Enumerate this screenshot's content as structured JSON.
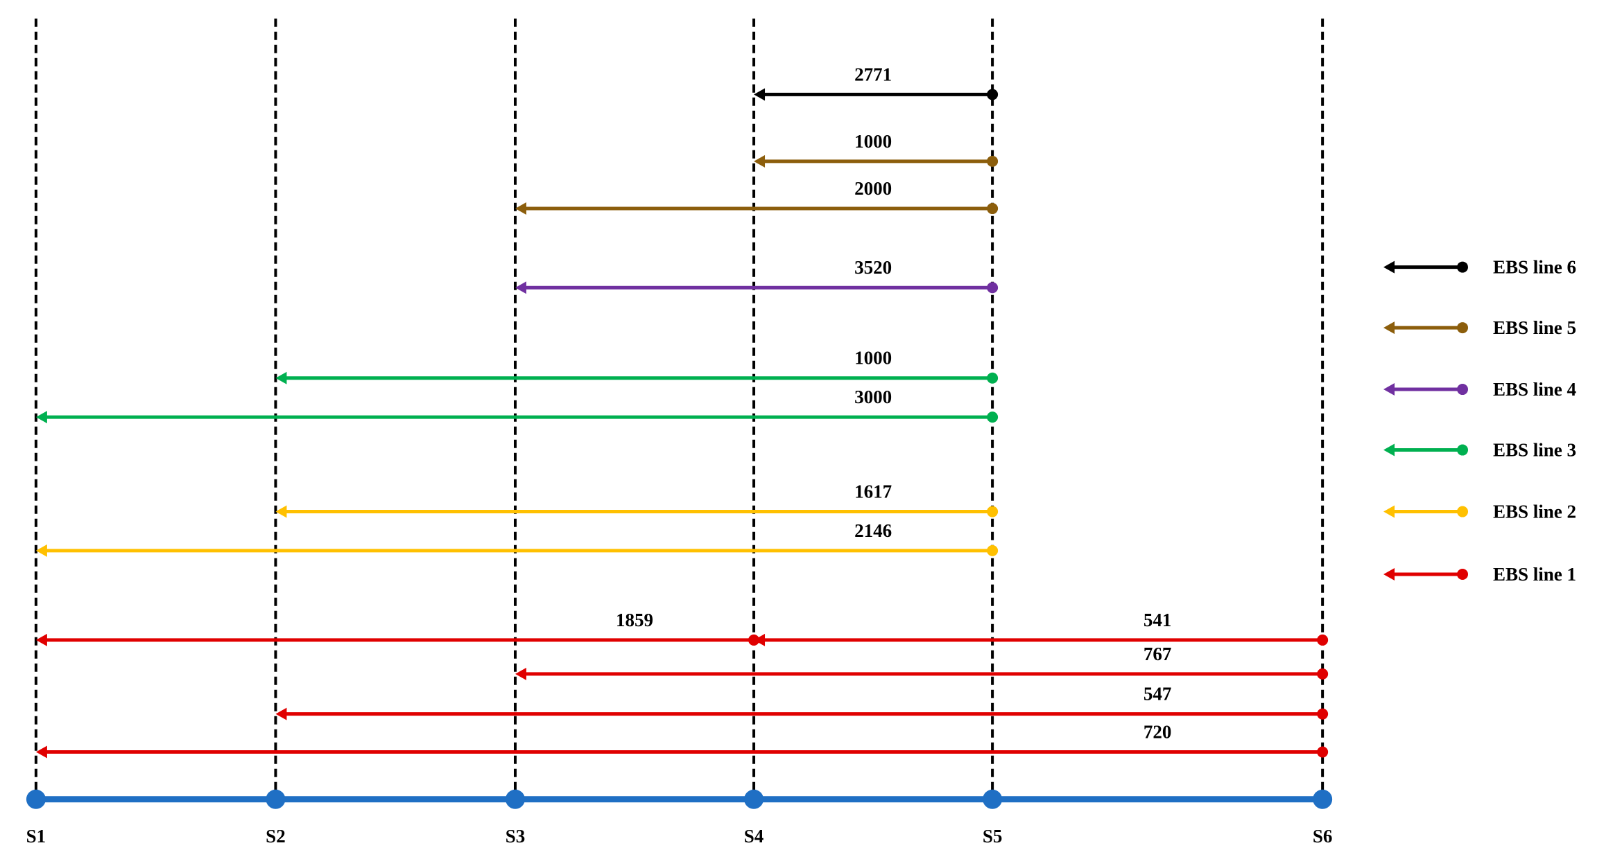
{
  "stations": [
    "S1",
    "S2",
    "S3",
    "S4",
    "S5",
    "S6"
  ],
  "legend": [
    {
      "name": "EBS line 6",
      "color": "#000000"
    },
    {
      "name": "EBS line 5",
      "color": "#8c5e0c"
    },
    {
      "name": "EBS line 4",
      "color": "#7030a0"
    },
    {
      "name": "EBS line 3",
      "color": "#00b050"
    },
    {
      "name": "EBS line 2",
      "color": "#ffc000"
    },
    {
      "name": "EBS line 1",
      "color": "#e00000"
    }
  ],
  "arrows": [
    {
      "line": "EBS line 6",
      "from": "S5",
      "to": "S4",
      "label": 2771
    },
    {
      "line": "EBS line 5",
      "from": "S5",
      "to": "S4",
      "label": 1000
    },
    {
      "line": "EBS line 5",
      "from": "S5",
      "to": "S3",
      "label": 2000
    },
    {
      "line": "EBS line 4",
      "from": "S5",
      "to": "S3",
      "label": 3520
    },
    {
      "line": "EBS line 3",
      "from": "S5",
      "to": "S2",
      "label": 1000
    },
    {
      "line": "EBS line 3",
      "from": "S5",
      "to": "S1",
      "label": 3000
    },
    {
      "line": "EBS line 2",
      "from": "S5",
      "to": "S2",
      "label": 1617
    },
    {
      "line": "EBS line 2",
      "from": "S5",
      "to": "S1",
      "label": 2146
    },
    {
      "line": "EBS line 1",
      "from": "S4",
      "to": "S1",
      "label": 1859
    },
    {
      "line": "EBS line 1",
      "from": "S6",
      "to": "S4",
      "label": 541
    },
    {
      "line": "EBS line 1",
      "from": "S6",
      "to": "S3",
      "label": 767
    },
    {
      "line": "EBS line 1",
      "from": "S6",
      "to": "S2",
      "label": 547
    },
    {
      "line": "EBS line 1",
      "from": "S6",
      "to": "S1",
      "label": 720
    }
  ]
}
